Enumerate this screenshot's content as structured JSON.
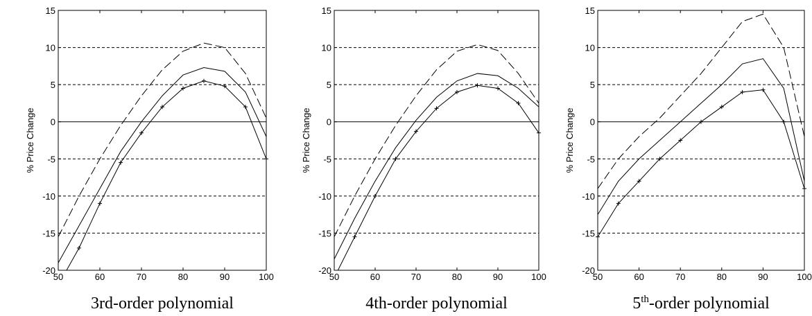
{
  "chart_data": [
    {
      "type": "line",
      "title": "3rd-order polynomial",
      "ylabel": "% Price Change",
      "x": [
        50,
        55,
        60,
        65,
        70,
        75,
        80,
        85,
        90,
        95,
        100
      ],
      "xlim": [
        50,
        100
      ],
      "xticks": [
        50,
        60,
        70,
        80,
        90,
        100
      ],
      "ylim": [
        -20,
        15
      ],
      "yticks": [
        -20,
        -15,
        -10,
        -5,
        0,
        5,
        10,
        15
      ],
      "grid": true,
      "series": [
        {
          "linestyle": "dashed",
          "color": "#000000",
          "values": [
            -15.5,
            -10,
            -5,
            -0.5,
            3.5,
            7,
            9.5,
            10.6,
            10,
            6.5,
            0.5
          ]
        },
        {
          "linestyle": "solid",
          "color": "#000000",
          "values": [
            -19,
            -14,
            -9,
            -4,
            0,
            3.5,
            6.3,
            7.3,
            6.8,
            4,
            -2
          ]
        },
        {
          "linestyle": "plus",
          "color": "#000000",
          "values": [
            -22,
            -17,
            -11,
            -5.5,
            -1.5,
            2,
            4.5,
            5.5,
            4.8,
            2,
            -5
          ]
        }
      ]
    },
    {
      "type": "line",
      "title": "4th-order polynomial",
      "ylabel": "% Price Change",
      "x": [
        50,
        55,
        60,
        65,
        70,
        75,
        80,
        85,
        90,
        95,
        100
      ],
      "xlim": [
        50,
        100
      ],
      "xticks": [
        50,
        60,
        70,
        80,
        90,
        100
      ],
      "ylim": [
        -20,
        15
      ],
      "yticks": [
        -20,
        -15,
        -10,
        -5,
        0,
        5,
        10,
        15
      ],
      "grid": true,
      "series": [
        {
          "linestyle": "dashed",
          "color": "#000000",
          "values": [
            -15.5,
            -10,
            -5,
            -0.5,
            3.5,
            7,
            9.5,
            10.4,
            9.6,
            6.5,
            2.5
          ]
        },
        {
          "linestyle": "solid",
          "color": "#000000",
          "values": [
            -18.5,
            -13,
            -8,
            -3.5,
            0.2,
            3.3,
            5.5,
            6.5,
            6.2,
            4.5,
            2
          ]
        },
        {
          "linestyle": "plus",
          "color": "#000000",
          "values": [
            -21,
            -15.5,
            -10,
            -5,
            -1.3,
            1.8,
            4,
            4.9,
            4.5,
            2.5,
            -1.5
          ]
        }
      ]
    },
    {
      "type": "line",
      "title": [
        "5",
        "th",
        "-order polynomial"
      ],
      "title_superscript": 1,
      "ylabel": "% Price Change",
      "x": [
        50,
        55,
        60,
        65,
        70,
        75,
        80,
        85,
        90,
        95,
        100
      ],
      "xlim": [
        50,
        100
      ],
      "xticks": [
        50,
        60,
        70,
        80,
        90,
        100
      ],
      "ylim": [
        -20,
        15
      ],
      "yticks": [
        -20,
        -15,
        -10,
        -5,
        0,
        5,
        10,
        15
      ],
      "grid": true,
      "series": [
        {
          "linestyle": "dashed",
          "color": "#000000",
          "values": [
            -9,
            -5,
            -2,
            0.5,
            3.5,
            6.5,
            10,
            13.5,
            14.5,
            10,
            -2
          ]
        },
        {
          "linestyle": "solid",
          "color": "#000000",
          "values": [
            -12.5,
            -8,
            -5,
            -2.5,
            0,
            2.5,
            5,
            7.8,
            8.5,
            4.5,
            -8
          ]
        },
        {
          "linestyle": "plus",
          "color": "#000000",
          "values": [
            -15.5,
            -11,
            -8,
            -5,
            -2.5,
            0,
            2,
            4,
            4.3,
            0,
            -9
          ]
        }
      ]
    }
  ]
}
